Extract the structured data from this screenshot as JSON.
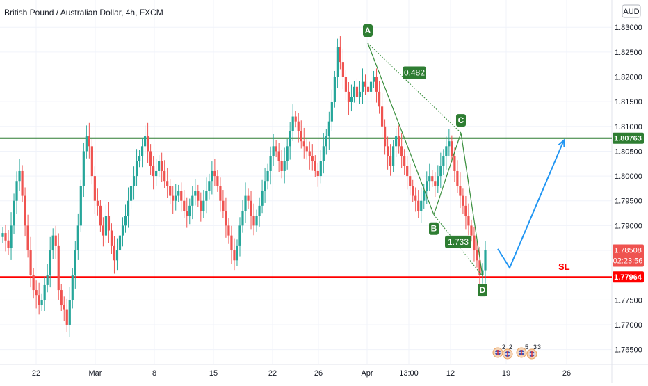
{
  "header": {
    "title": "British Pound / Australian Dollar, 4h, FXCM",
    "currency_button": "AUD"
  },
  "colors": {
    "up": "#26a69a",
    "down": "#ef5350",
    "resistance": "#2e7d32",
    "stop": "#ff0000",
    "projection": "#2196f3",
    "pattern": "#388e3c",
    "label_bg": "#2e7d32"
  },
  "chart_data": {
    "type": "candlestick",
    "symbol": "GBPAUD",
    "interval": "4h",
    "ylim": [
      1.762,
      1.8355
    ],
    "y_ticks": [
      "1.83000",
      "1.82500",
      "1.82000",
      "1.81500",
      "1.81000",
      "1.80500",
      "1.80000",
      "1.79500",
      "1.79000",
      "1.78500",
      "1.78000",
      "1.77500",
      "1.77000",
      "1.76500"
    ],
    "x_ticks": [
      "22",
      "Mar",
      "8",
      "15",
      "22",
      "26",
      "Apr",
      "13:00",
      "12",
      "19",
      "26"
    ],
    "closes": [
      1.7885,
      1.787,
      1.7855,
      1.79,
      1.795,
      1.799,
      1.801,
      1.796,
      1.79,
      1.785,
      1.78,
      1.777,
      1.776,
      1.774,
      1.775,
      1.778,
      1.78,
      1.785,
      1.788,
      1.786,
      1.777,
      1.774,
      1.773,
      1.77,
      1.775,
      1.78,
      1.785,
      1.79,
      1.798,
      1.805,
      1.808,
      1.806,
      1.8,
      1.795,
      1.794,
      1.79,
      1.788,
      1.792,
      1.789,
      1.786,
      1.783,
      1.785,
      1.788,
      1.79,
      1.792,
      1.795,
      1.798,
      1.8,
      1.803,
      1.804,
      1.806,
      1.808,
      1.805,
      1.802,
      1.8,
      1.801,
      1.803,
      1.801,
      1.799,
      1.798,
      1.796,
      1.795,
      1.796,
      1.797,
      1.795,
      1.793,
      1.792,
      1.794,
      1.796,
      1.797,
      1.795,
      1.793,
      1.795,
      1.797,
      1.799,
      1.801,
      1.8,
      1.798,
      1.795,
      1.793,
      1.79,
      1.788,
      1.785,
      1.783,
      1.786,
      1.79,
      1.793,
      1.796,
      1.795,
      1.792,
      1.79,
      1.792,
      1.794,
      1.797,
      1.799,
      1.801,
      1.804,
      1.806,
      1.805,
      1.803,
      1.801,
      1.803,
      1.806,
      1.809,
      1.812,
      1.811,
      1.809,
      1.807,
      1.806,
      1.805,
      1.804,
      1.803,
      1.801,
      1.8,
      1.803,
      1.806,
      1.808,
      1.811,
      1.815,
      1.82,
      1.826,
      1.823,
      1.82,
      1.817,
      1.815,
      1.816,
      1.818,
      1.816,
      1.817,
      1.819,
      1.818,
      1.817,
      1.819,
      1.82,
      1.817,
      1.814,
      1.81,
      1.806,
      1.804,
      1.802,
      1.806,
      1.808,
      1.806,
      1.804,
      1.802,
      1.8,
      1.798,
      1.796,
      1.795,
      1.793,
      1.795,
      1.797,
      1.799,
      1.8,
      1.799,
      1.798,
      1.8,
      1.802,
      1.804,
      1.806,
      1.807,
      1.804,
      1.801,
      1.798,
      1.796,
      1.794,
      1.792,
      1.79,
      1.788,
      1.785,
      1.783,
      1.78,
      1.781,
      1.785
    ]
  },
  "annotations": {
    "points": [
      {
        "label": "A",
        "value": 1.8268
      },
      {
        "label": "B",
        "value": 1.7922
      },
      {
        "label": "C",
        "value": 1.8087
      },
      {
        "label": "D",
        "value": 1.7798
      }
    ],
    "ratios": [
      "0.482",
      "1.733"
    ],
    "stop_label": "SL"
  },
  "price_tags": {
    "resistance": "1.80763",
    "current": "1.78508",
    "countdown": "02:23:56",
    "stop": "1.77964"
  },
  "events": {
    "items": [
      "2",
      "2",
      "5",
      "3",
      "3"
    ]
  }
}
